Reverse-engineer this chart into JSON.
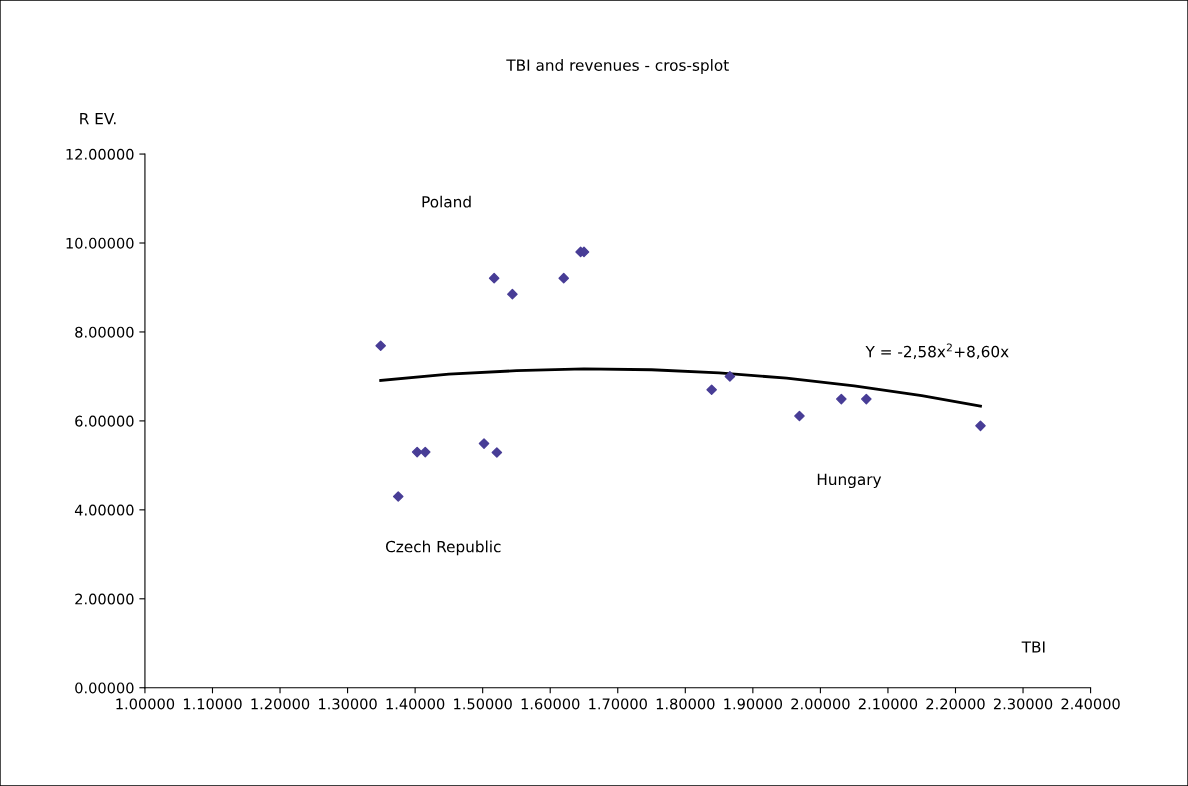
{
  "chart_data": {
    "type": "scatter",
    "title": "TBI and revenues - cros-splot",
    "xlabel": "TBI",
    "ylabel": "R EV.",
    "xlim": [
      1.0,
      2.4
    ],
    "ylim": [
      0,
      12
    ],
    "xticks": [
      {
        "value": 1.0,
        "label": "1.00000"
      },
      {
        "value": 1.1,
        "label": "1.10000"
      },
      {
        "value": 1.2,
        "label": "1.20000"
      },
      {
        "value": 1.3,
        "label": "1.30000"
      },
      {
        "value": 1.4,
        "label": "1.40000"
      },
      {
        "value": 1.5,
        "label": "1.50000"
      },
      {
        "value": 1.6,
        "label": "1.60000"
      },
      {
        "value": 1.7,
        "label": "1.70000"
      },
      {
        "value": 1.8,
        "label": "1.80000"
      },
      {
        "value": 1.9,
        "label": "1.90000"
      },
      {
        "value": 2.0,
        "label": "2.00000"
      },
      {
        "value": 2.1,
        "label": "2.10000"
      },
      {
        "value": 2.2,
        "label": "2.20000"
      },
      {
        "value": 2.3,
        "label": "2.30000"
      },
      {
        "value": 2.4,
        "label": "2.40000"
      }
    ],
    "yticks": [
      {
        "value": 0,
        "label": "0.00000"
      },
      {
        "value": 2,
        "label": "2.00000"
      },
      {
        "value": 4,
        "label": "4.00000"
      },
      {
        "value": 6,
        "label": "6.00000"
      },
      {
        "value": 8,
        "label": "8.00000"
      },
      {
        "value": 10,
        "label": "10.00000"
      },
      {
        "value": 12,
        "label": "12.00000"
      }
    ],
    "grid": false,
    "legend": false,
    "marker": "diamond",
    "series": [
      {
        "color": "#483d96",
        "x": [
          1.349,
          1.375,
          1.403,
          1.415,
          1.502,
          1.521,
          1.517,
          1.544,
          1.62,
          1.645,
          1.65,
          1.839,
          1.866,
          1.969,
          2.031,
          2.068,
          2.237
        ],
        "values": [
          7.69,
          4.3,
          5.3,
          5.3,
          5.49,
          5.29,
          9.21,
          8.85,
          9.21,
          9.8,
          9.8,
          6.7,
          7.0,
          6.11,
          6.49,
          6.49,
          5.89
        ]
      },
      {
        "type": "line",
        "color": "#000000",
        "marker": "none",
        "line_style": "solid",
        "x": [
          1.349,
          1.45,
          1.55,
          1.65,
          1.75,
          1.85,
          1.95,
          2.05,
          2.15,
          2.237
        ],
        "values": [
          6.91,
          7.05,
          7.13,
          7.17,
          7.15,
          7.08,
          6.96,
          6.79,
          6.57,
          6.33
        ]
      }
    ],
    "annotations": [
      "Poland",
      "Czech Republic",
      "Hungary",
      "Y = -2,58x$^{2}$+8,60x"
    ]
  }
}
